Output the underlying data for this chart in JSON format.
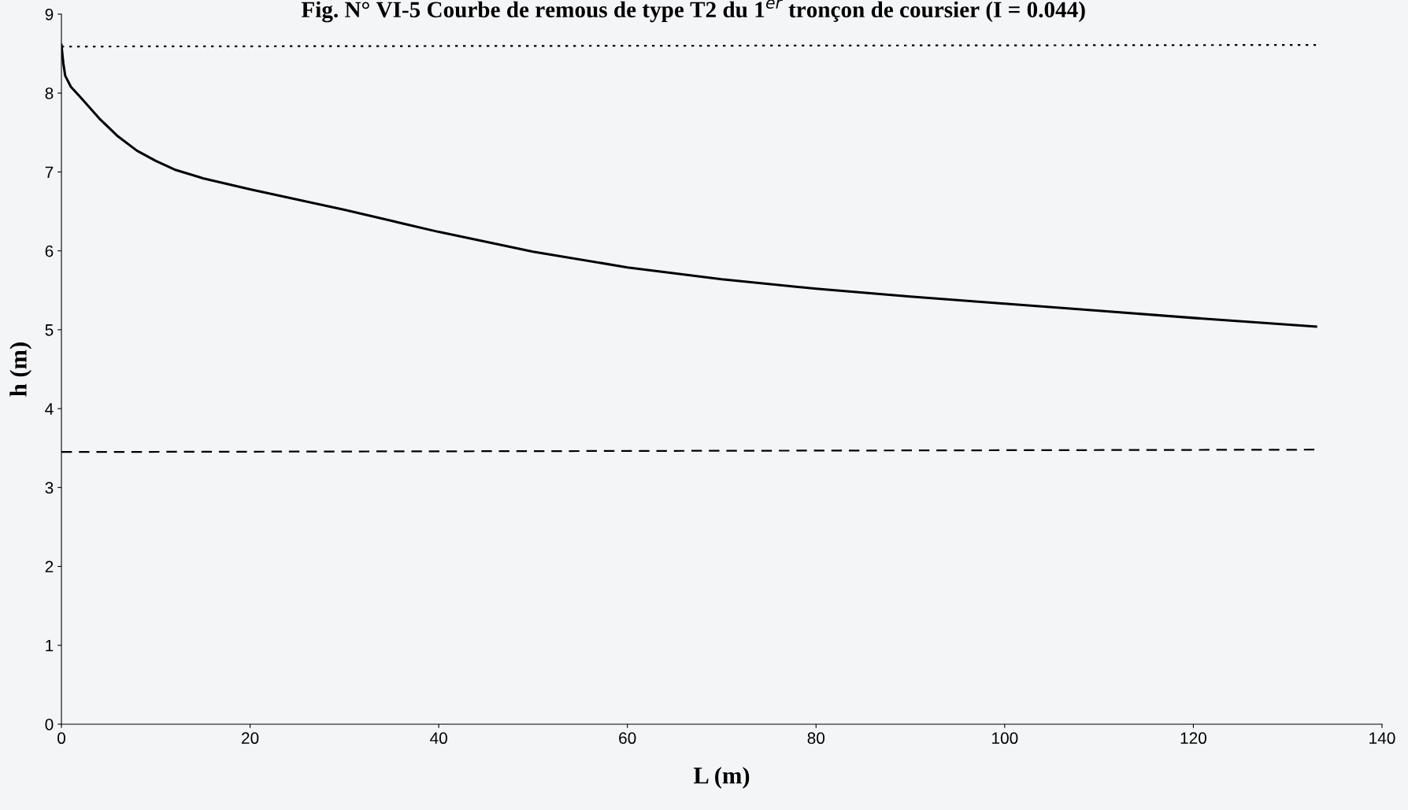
{
  "chart_data": {
    "type": "line",
    "title": "Fig. N° VI-5 Courbe de remous de type T2 du 1$^{er}$ tronçon de coursier (I = 0.044)",
    "xlabel": "L (m)",
    "ylabel": "h (m)",
    "xlim": [
      0,
      140
    ],
    "xticks": [
      0,
      20,
      40,
      60,
      80,
      100,
      120,
      140
    ],
    "ylim": [
      0,
      9
    ],
    "yticks": [
      0,
      1,
      2,
      3,
      4,
      5,
      6,
      7,
      8,
      9
    ],
    "grid": false,
    "legend": false,
    "series": [
      {
        "color": "#000000",
        "line_style": "solid",
        "x": [
          0,
          0.2,
          0.4,
          1,
          2,
          4,
          6,
          8,
          10,
          12,
          15,
          20,
          25,
          30,
          35,
          40,
          50,
          60,
          70,
          80,
          90,
          100,
          110,
          120,
          133
        ],
        "values": [
          8.61,
          8.38,
          8.22,
          8.08,
          7.95,
          7.68,
          7.45,
          7.27,
          7.14,
          7.03,
          6.92,
          6.78,
          6.65,
          6.52,
          6.38,
          6.24,
          5.99,
          5.79,
          5.64,
          5.52,
          5.42,
          5.33,
          5.24,
          5.15,
          5.04
        ]
      },
      {
        "color": "#000000",
        "line_style": "dotted",
        "x": [
          0,
          133
        ],
        "values": [
          8.59,
          8.61
        ]
      },
      {
        "color": "#000000",
        "line_style": "dashed",
        "x": [
          0,
          133
        ],
        "values": [
          3.45,
          3.48
        ]
      }
    ]
  }
}
